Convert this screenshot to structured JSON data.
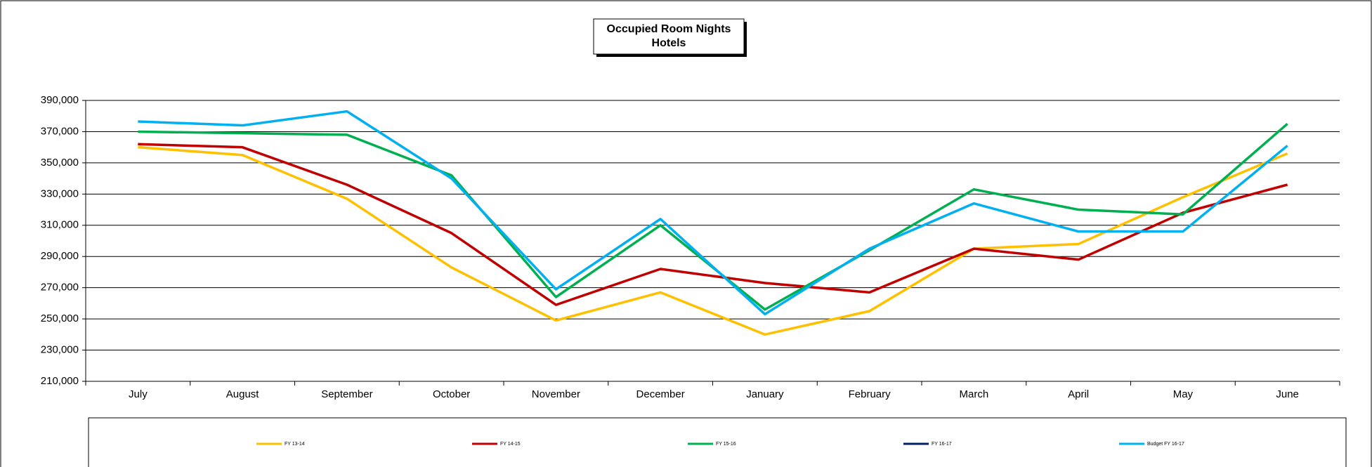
{
  "chart_data": {
    "type": "line",
    "title": [
      "Occupied Room Nights",
      "Hotels"
    ],
    "categories": [
      "July",
      "August",
      "September",
      "October",
      "November",
      "December",
      "January",
      "February",
      "March",
      "April",
      "May",
      "June"
    ],
    "series": [
      {
        "name": "FY 13-14",
        "color": "#ffc000",
        "values": [
          360000,
          355000,
          327000,
          283000,
          249000,
          267000,
          240000,
          255000,
          295000,
          298000,
          328000,
          356000
        ]
      },
      {
        "name": "FY 14-15",
        "color": "#c00000",
        "values": [
          362000,
          360000,
          336000,
          305000,
          259000,
          282000,
          273000,
          267000,
          295000,
          288000,
          318000,
          336000
        ]
      },
      {
        "name": "FY 15-16",
        "color": "#00b050",
        "values": [
          370000,
          369000,
          368000,
          342000,
          264000,
          310000,
          256000,
          294000,
          333000,
          320000,
          317000,
          375000
        ]
      },
      {
        "name": "FY 16-17",
        "color": "#002060",
        "values": [
          null,
          null,
          null,
          null,
          null,
          null,
          null,
          null,
          null,
          null,
          null,
          null
        ]
      },
      {
        "name": "Budget FY 16-17",
        "color": "#00b0f0",
        "values": [
          376500,
          374000,
          383000,
          340000,
          269000,
          314000,
          253000,
          295000,
          324000,
          306000,
          306000,
          361000
        ]
      }
    ],
    "ylim": [
      210000,
      390000
    ],
    "yticks": [
      {
        "value": 210000,
        "label": "210,000"
      },
      {
        "value": 230000,
        "label": "230,000"
      },
      {
        "value": 250000,
        "label": "250,000"
      },
      {
        "value": 270000,
        "label": "270,000"
      },
      {
        "value": 290000,
        "label": "290,000"
      },
      {
        "value": 310000,
        "label": "310,000"
      },
      {
        "value": 330000,
        "label": "330,000"
      },
      {
        "value": 350000,
        "label": "350,000"
      },
      {
        "value": 370000,
        "label": "370,000"
      },
      {
        "value": 390000,
        "label": "390,000"
      }
    ],
    "grid": true,
    "legend": "bottom"
  }
}
